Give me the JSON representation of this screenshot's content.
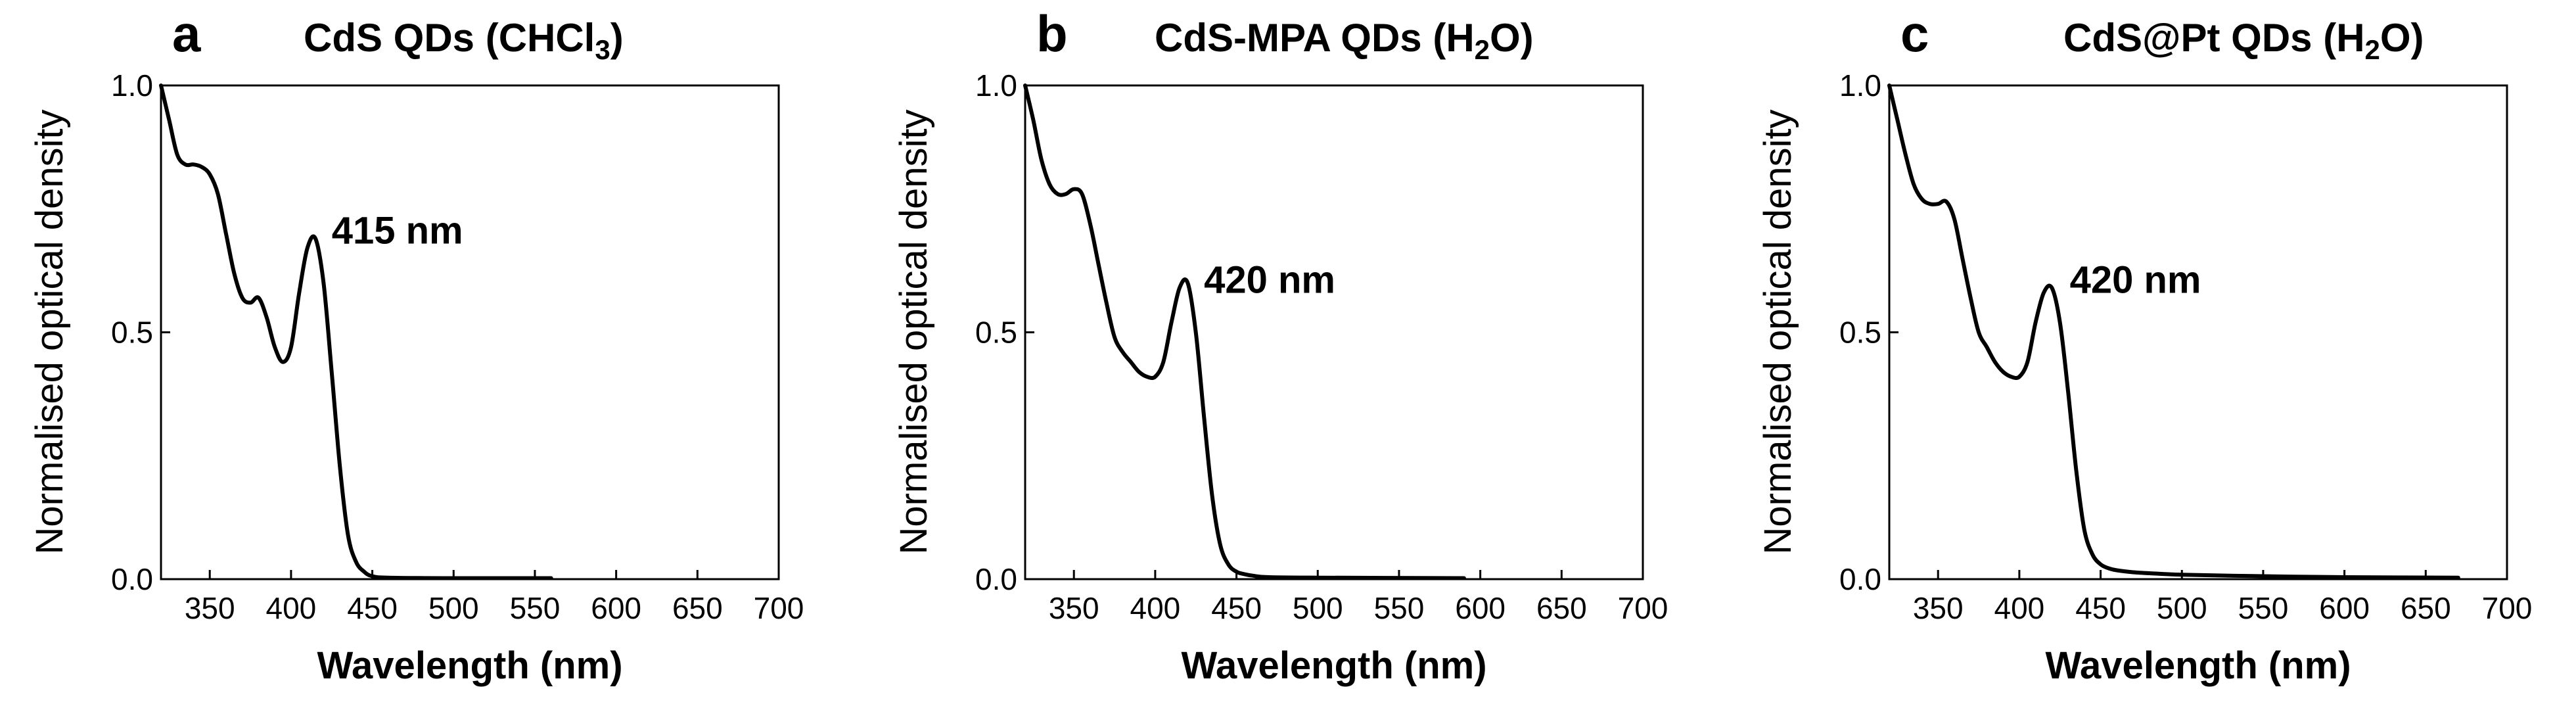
{
  "chart_data": [
    {
      "panel": "a",
      "type": "line",
      "title": "CdS QDs (CHCl3)",
      "title_parts": {
        "main": "CdS QDs (CHCl",
        "sub": "3",
        "end": ")"
      },
      "xlabel": "Wavelength (nm)",
      "ylabel": "Normalised optical density",
      "xlim": [
        320,
        700
      ],
      "ylim": [
        0,
        1.0
      ],
      "xticks": [
        350,
        400,
        450,
        500,
        550,
        600,
        650,
        700
      ],
      "yticks": [
        0.0,
        0.5,
        1.0
      ],
      "xtick_labels": [
        "350",
        "400",
        "450",
        "500",
        "550",
        "600",
        "650",
        "700"
      ],
      "ytick_labels": [
        "0.0",
        "0.5",
        "1.0"
      ],
      "annotation": {
        "text": "415 nm",
        "x": 425,
        "y": 0.68
      },
      "series": [
        {
          "name": "CdS QDs (CHCl3)",
          "x": [
            320,
            325,
            330,
            335,
            340,
            345,
            350,
            355,
            360,
            365,
            370,
            375,
            380,
            385,
            390,
            395,
            400,
            405,
            410,
            415,
            420,
            425,
            430,
            435,
            440,
            445,
            450,
            460,
            500,
            560
          ],
          "y": [
            1.0,
            0.93,
            0.86,
            0.84,
            0.84,
            0.835,
            0.82,
            0.78,
            0.7,
            0.62,
            0.57,
            0.56,
            0.57,
            0.53,
            0.47,
            0.44,
            0.47,
            0.58,
            0.67,
            0.69,
            0.6,
            0.42,
            0.23,
            0.09,
            0.035,
            0.015,
            0.006,
            0.003,
            0.002,
            0.002
          ]
        }
      ]
    },
    {
      "panel": "b",
      "type": "line",
      "title": "CdS-MPA QDs (H2O)",
      "title_parts": {
        "main": "CdS-MPA QDs (H",
        "sub": "2",
        "end": "O)"
      },
      "xlabel": "Wavelength (nm)",
      "ylabel": "Normalised optical density",
      "xlim": [
        320,
        700
      ],
      "ylim": [
        0,
        1.0
      ],
      "xticks": [
        350,
        400,
        450,
        500,
        550,
        600,
        650,
        700
      ],
      "yticks": [
        0.0,
        0.5,
        1.0
      ],
      "xtick_labels": [
        "350",
        "400",
        "450",
        "500",
        "550",
        "600",
        "650",
        "700"
      ],
      "ytick_labels": [
        "0.0",
        "0.5",
        "1.0"
      ],
      "annotation": {
        "text": "420 nm",
        "x": 430,
        "y": 0.58
      },
      "series": [
        {
          "name": "CdS-MPA QDs (H2O)",
          "x": [
            320,
            325,
            330,
            335,
            340,
            345,
            350,
            355,
            360,
            365,
            370,
            375,
            380,
            385,
            390,
            395,
            400,
            405,
            410,
            415,
            420,
            425,
            430,
            435,
            440,
            445,
            450,
            455,
            460,
            470,
            500,
            590
          ],
          "y": [
            1.0,
            0.93,
            0.85,
            0.8,
            0.78,
            0.78,
            0.79,
            0.78,
            0.72,
            0.64,
            0.56,
            0.49,
            0.46,
            0.44,
            0.42,
            0.41,
            0.41,
            0.44,
            0.52,
            0.59,
            0.6,
            0.5,
            0.33,
            0.17,
            0.07,
            0.03,
            0.015,
            0.01,
            0.007,
            0.004,
            0.003,
            0.002
          ]
        }
      ]
    },
    {
      "panel": "c",
      "type": "line",
      "title": "CdS@Pt QDs (H2O)",
      "title_parts": {
        "main": "CdS@Pt QDs (H",
        "sub": "2",
        "end": "O)"
      },
      "xlabel": "Wavelength (nm)",
      "ylabel": "Normalised optical density",
      "xlim": [
        320,
        700
      ],
      "ylim": [
        0,
        1.0
      ],
      "xticks": [
        350,
        400,
        450,
        500,
        550,
        600,
        650,
        700
      ],
      "yticks": [
        0.0,
        0.5,
        1.0
      ],
      "xtick_labels": [
        "350",
        "400",
        "450",
        "500",
        "550",
        "600",
        "650",
        "700"
      ],
      "ytick_labels": [
        "0.0",
        "0.5",
        "1.0"
      ],
      "annotation": {
        "text": "420 nm",
        "x": 431,
        "y": 0.58
      },
      "series": [
        {
          "name": "CdS@Pt QDs (H2O)",
          "x": [
            320,
            325,
            330,
            335,
            340,
            345,
            350,
            355,
            360,
            365,
            370,
            375,
            380,
            385,
            390,
            395,
            400,
            405,
            410,
            415,
            420,
            425,
            430,
            435,
            440,
            445,
            450,
            455,
            460,
            470,
            480,
            500,
            550,
            600,
            670
          ],
          "y": [
            1.0,
            0.93,
            0.86,
            0.8,
            0.77,
            0.76,
            0.76,
            0.765,
            0.73,
            0.65,
            0.57,
            0.5,
            0.47,
            0.44,
            0.42,
            0.41,
            0.41,
            0.44,
            0.52,
            0.58,
            0.59,
            0.52,
            0.38,
            0.22,
            0.1,
            0.05,
            0.03,
            0.022,
            0.018,
            0.014,
            0.012,
            0.009,
            0.006,
            0.004,
            0.003
          ]
        }
      ]
    }
  ]
}
